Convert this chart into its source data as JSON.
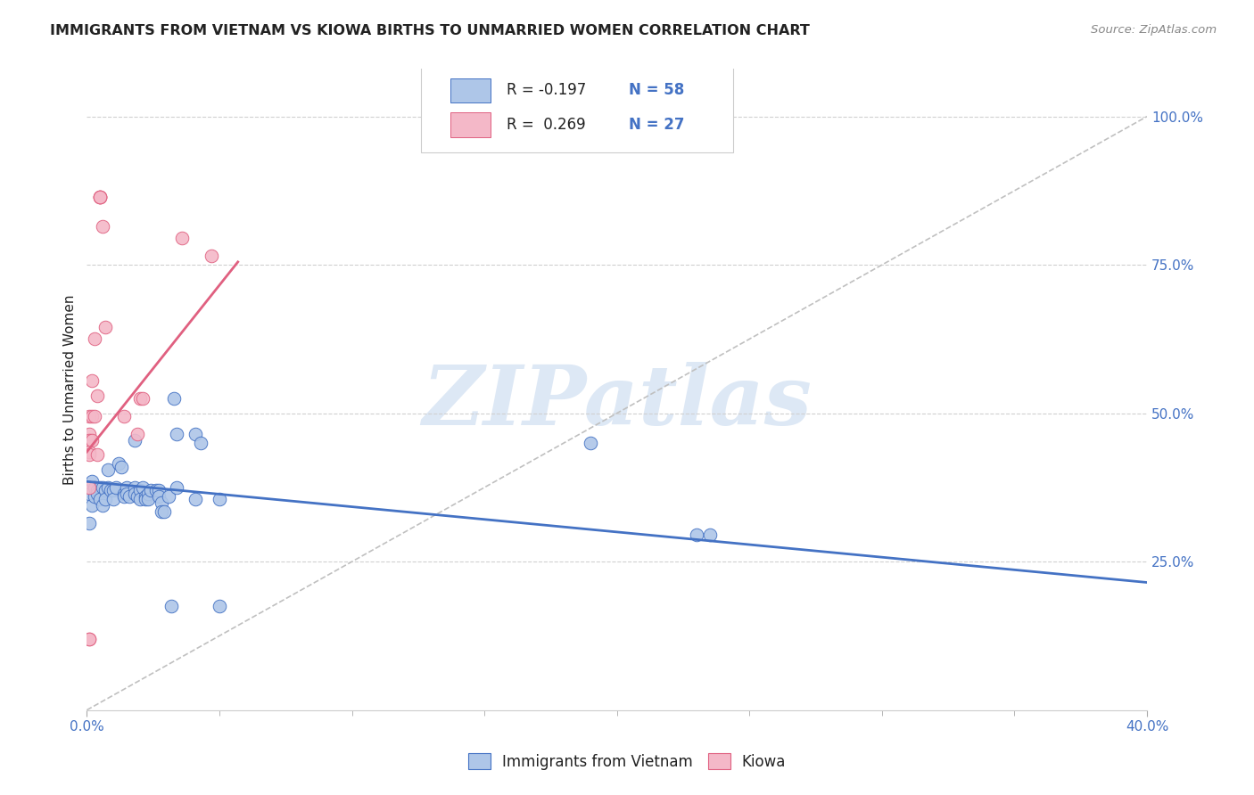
{
  "title": "IMMIGRANTS FROM VIETNAM VS KIOWA BIRTHS TO UNMARRIED WOMEN CORRELATION CHART",
  "source": "Source: ZipAtlas.com",
  "ylabel": "Births to Unmarried Women",
  "legend_top": [
    {
      "r_label": "R = -0.197",
      "n_label": "N = 58",
      "color": "#aec6e8",
      "edge": "#4472c4"
    },
    {
      "r_label": "R =  0.269",
      "n_label": "N = 27",
      "color": "#f4b8c8",
      "edge": "#e06080"
    }
  ],
  "legend_bottom": [
    "Immigrants from Vietnam",
    "Kiowa"
  ],
  "blue_scatter": [
    [
      0.001,
      0.365
    ],
    [
      0.002,
      0.345
    ],
    [
      0.001,
      0.315
    ],
    [
      0.003,
      0.36
    ],
    [
      0.002,
      0.385
    ],
    [
      0.003,
      0.375
    ],
    [
      0.004,
      0.37
    ],
    [
      0.005,
      0.375
    ],
    [
      0.004,
      0.365
    ],
    [
      0.006,
      0.375
    ],
    [
      0.005,
      0.355
    ],
    [
      0.006,
      0.345
    ],
    [
      0.007,
      0.37
    ],
    [
      0.007,
      0.355
    ],
    [
      0.008,
      0.405
    ],
    [
      0.008,
      0.375
    ],
    [
      0.009,
      0.37
    ],
    [
      0.01,
      0.37
    ],
    [
      0.01,
      0.355
    ],
    [
      0.011,
      0.375
    ],
    [
      0.012,
      0.415
    ],
    [
      0.013,
      0.41
    ],
    [
      0.014,
      0.365
    ],
    [
      0.014,
      0.36
    ],
    [
      0.015,
      0.375
    ],
    [
      0.015,
      0.365
    ],
    [
      0.016,
      0.36
    ],
    [
      0.018,
      0.455
    ],
    [
      0.018,
      0.375
    ],
    [
      0.018,
      0.365
    ],
    [
      0.019,
      0.36
    ],
    [
      0.02,
      0.37
    ],
    [
      0.02,
      0.355
    ],
    [
      0.021,
      0.375
    ],
    [
      0.022,
      0.36
    ],
    [
      0.022,
      0.355
    ],
    [
      0.023,
      0.365
    ],
    [
      0.023,
      0.355
    ],
    [
      0.024,
      0.37
    ],
    [
      0.026,
      0.37
    ],
    [
      0.027,
      0.37
    ],
    [
      0.027,
      0.36
    ],
    [
      0.028,
      0.35
    ],
    [
      0.028,
      0.335
    ],
    [
      0.029,
      0.335
    ],
    [
      0.031,
      0.36
    ],
    [
      0.032,
      0.175
    ],
    [
      0.033,
      0.525
    ],
    [
      0.034,
      0.465
    ],
    [
      0.034,
      0.375
    ],
    [
      0.041,
      0.355
    ],
    [
      0.041,
      0.465
    ],
    [
      0.043,
      0.45
    ],
    [
      0.05,
      0.355
    ],
    [
      0.05,
      0.175
    ],
    [
      0.19,
      0.45
    ],
    [
      0.23,
      0.295
    ],
    [
      0.235,
      0.295
    ]
  ],
  "pink_scatter": [
    [
      0.001,
      0.495
    ],
    [
      0.001,
      0.465
    ],
    [
      0.001,
      0.455
    ],
    [
      0.001,
      0.435
    ],
    [
      0.001,
      0.43
    ],
    [
      0.001,
      0.375
    ],
    [
      0.001,
      0.12
    ],
    [
      0.002,
      0.555
    ],
    [
      0.002,
      0.495
    ],
    [
      0.002,
      0.455
    ],
    [
      0.003,
      0.625
    ],
    [
      0.003,
      0.495
    ],
    [
      0.004,
      0.53
    ],
    [
      0.004,
      0.43
    ],
    [
      0.005,
      0.865
    ],
    [
      0.005,
      0.865
    ],
    [
      0.005,
      0.865
    ],
    [
      0.005,
      0.865
    ],
    [
      0.006,
      0.815
    ],
    [
      0.007,
      0.645
    ],
    [
      0.014,
      0.495
    ],
    [
      0.019,
      0.465
    ],
    [
      0.02,
      0.525
    ],
    [
      0.021,
      0.525
    ],
    [
      0.036,
      0.795
    ],
    [
      0.047,
      0.765
    ],
    [
      0.001,
      0.12
    ]
  ],
  "blue_line": {
    "x": [
      0.0,
      0.4
    ],
    "y": [
      0.385,
      0.215
    ]
  },
  "pink_line": {
    "x": [
      0.0,
      0.057
    ],
    "y": [
      0.435,
      0.755
    ]
  },
  "gray_dashed_line": {
    "x": [
      0.0,
      0.4
    ],
    "y": [
      0.0,
      1.0
    ]
  },
  "xlim": [
    0.0,
    0.4
  ],
  "ylim": [
    0.0,
    1.08
  ],
  "right_yticks": [
    0.25,
    0.5,
    0.75,
    1.0
  ],
  "right_yticklabels": [
    "25.0%",
    "50.0%",
    "75.0%",
    "100.0%"
  ],
  "x_minor_ticks": [
    0.05,
    0.1,
    0.15,
    0.2,
    0.25,
    0.3,
    0.35
  ],
  "scatter_size": 110,
  "background_color": "#ffffff",
  "title_color": "#222222",
  "source_color": "#888888",
  "blue_color": "#aec6e8",
  "pink_color": "#f4b8c8",
  "blue_line_color": "#4472c4",
  "pink_line_color": "#e06080",
  "gray_line_color": "#c0c0c0",
  "right_axis_color": "#4472c4",
  "tick_label_color": "#4472c4",
  "grid_color": "#d0d0d0",
  "watermark_text": "ZIPatlas",
  "watermark_color": "#dde8f5",
  "legend_r_black": "#222222",
  "legend_n_blue": "#4472c4"
}
